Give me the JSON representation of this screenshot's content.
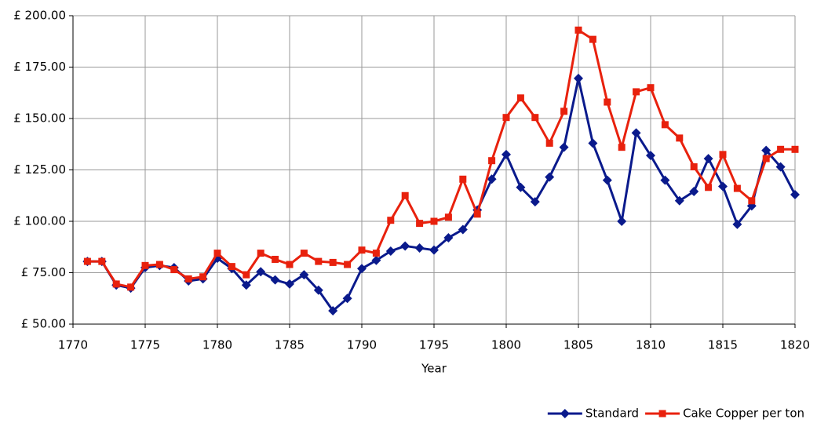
{
  "chart_data": {
    "type": "line",
    "xlabel": "Year",
    "x": [
      1771,
      1772,
      1773,
      1774,
      1775,
      1776,
      1777,
      1778,
      1779,
      1780,
      1781,
      1782,
      1783,
      1784,
      1785,
      1786,
      1787,
      1788,
      1789,
      1790,
      1791,
      1792,
      1793,
      1794,
      1795,
      1796,
      1797,
      1798,
      1799,
      1800,
      1801,
      1802,
      1803,
      1804,
      1805,
      1806,
      1807,
      1808,
      1809,
      1810,
      1811,
      1812,
      1813,
      1814,
      1815,
      1816,
      1817,
      1818,
      1819,
      1820
    ],
    "series": [
      {
        "name": "Standard",
        "color": "#0a1a8c",
        "marker": "diamond",
        "values": [
          80.5,
          80.5,
          69,
          67.5,
          77.5,
          78.5,
          77.5,
          71,
          72,
          82,
          77,
          69,
          75.5,
          71.5,
          69.5,
          74,
          66.5,
          56.5,
          62.5,
          77,
          81,
          85.5,
          88,
          87,
          86,
          92,
          96,
          105.5,
          120.5,
          132.5,
          116.5,
          109.5,
          121.5,
          136,
          169.5,
          138,
          120,
          100,
          143,
          132,
          120,
          110,
          114.5,
          130.5,
          117,
          98.5,
          107.5,
          134.5,
          126.5,
          113
        ]
      },
      {
        "name": "Cake Copper per ton",
        "color": "#e8210d",
        "marker": "square",
        "values": [
          80.5,
          80.5,
          69.5,
          68,
          78.5,
          79,
          76.5,
          72,
          73,
          84.5,
          78,
          74,
          84.5,
          81.5,
          79,
          84.5,
          80.5,
          80,
          79,
          86,
          84.5,
          100.5,
          112.5,
          99,
          100,
          102,
          120.5,
          103.5,
          129.5,
          150.5,
          160,
          150.5,
          138,
          153.5,
          193,
          188.5,
          158,
          136,
          163,
          165,
          147,
          140.5,
          126.5,
          116.5,
          132.5,
          116,
          110,
          130.5,
          135,
          135
        ]
      }
    ],
    "xlim": [
      1770,
      1820
    ],
    "xticks": [
      1770,
      1775,
      1780,
      1785,
      1790,
      1795,
      1800,
      1805,
      1810,
      1815,
      1820
    ],
    "ylim": [
      50,
      200
    ],
    "yticks": [
      {
        "value": 50,
        "label": "£ 50.00"
      },
      {
        "value": 75,
        "label": "£ 75.00"
      },
      {
        "value": 100,
        "label": "£ 100.00"
      },
      {
        "value": 125,
        "label": "£ 125.00"
      },
      {
        "value": 150,
        "label": "£ 150.00"
      },
      {
        "value": 175,
        "label": "£ 175.00"
      },
      {
        "value": 200,
        "label": "£ 200.00"
      }
    ],
    "grid": true,
    "legend": "bottom-right"
  }
}
